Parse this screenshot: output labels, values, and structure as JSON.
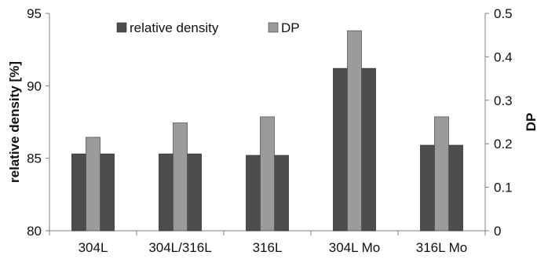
{
  "chart_data": {
    "type": "bar",
    "categories": [
      "304L",
      "304L/316L",
      "316L",
      "304L Mo",
      "316L Mo"
    ],
    "series": [
      {
        "name": "relative density",
        "axis": "left",
        "color": "#4d4d4d",
        "values": [
          85.3,
          85.3,
          85.2,
          91.2,
          85.9
        ]
      },
      {
        "name": "DP",
        "axis": "right",
        "color": "#9b9b9b",
        "values": [
          0.215,
          0.248,
          0.262,
          0.46,
          0.262
        ]
      }
    ],
    "pattern_note": "",
    "ylabel": "relative density [%]",
    "ylabel_right": "DP",
    "ylim": [
      80,
      95
    ],
    "ylim_right": [
      0,
      0.5
    ],
    "yticks": [
      "80",
      "85",
      "90",
      "95"
    ],
    "yticks_right": [
      "0",
      "0.1",
      "0.2",
      "0.3",
      "0.4",
      "0.5"
    ],
    "legend_position": "top"
  }
}
